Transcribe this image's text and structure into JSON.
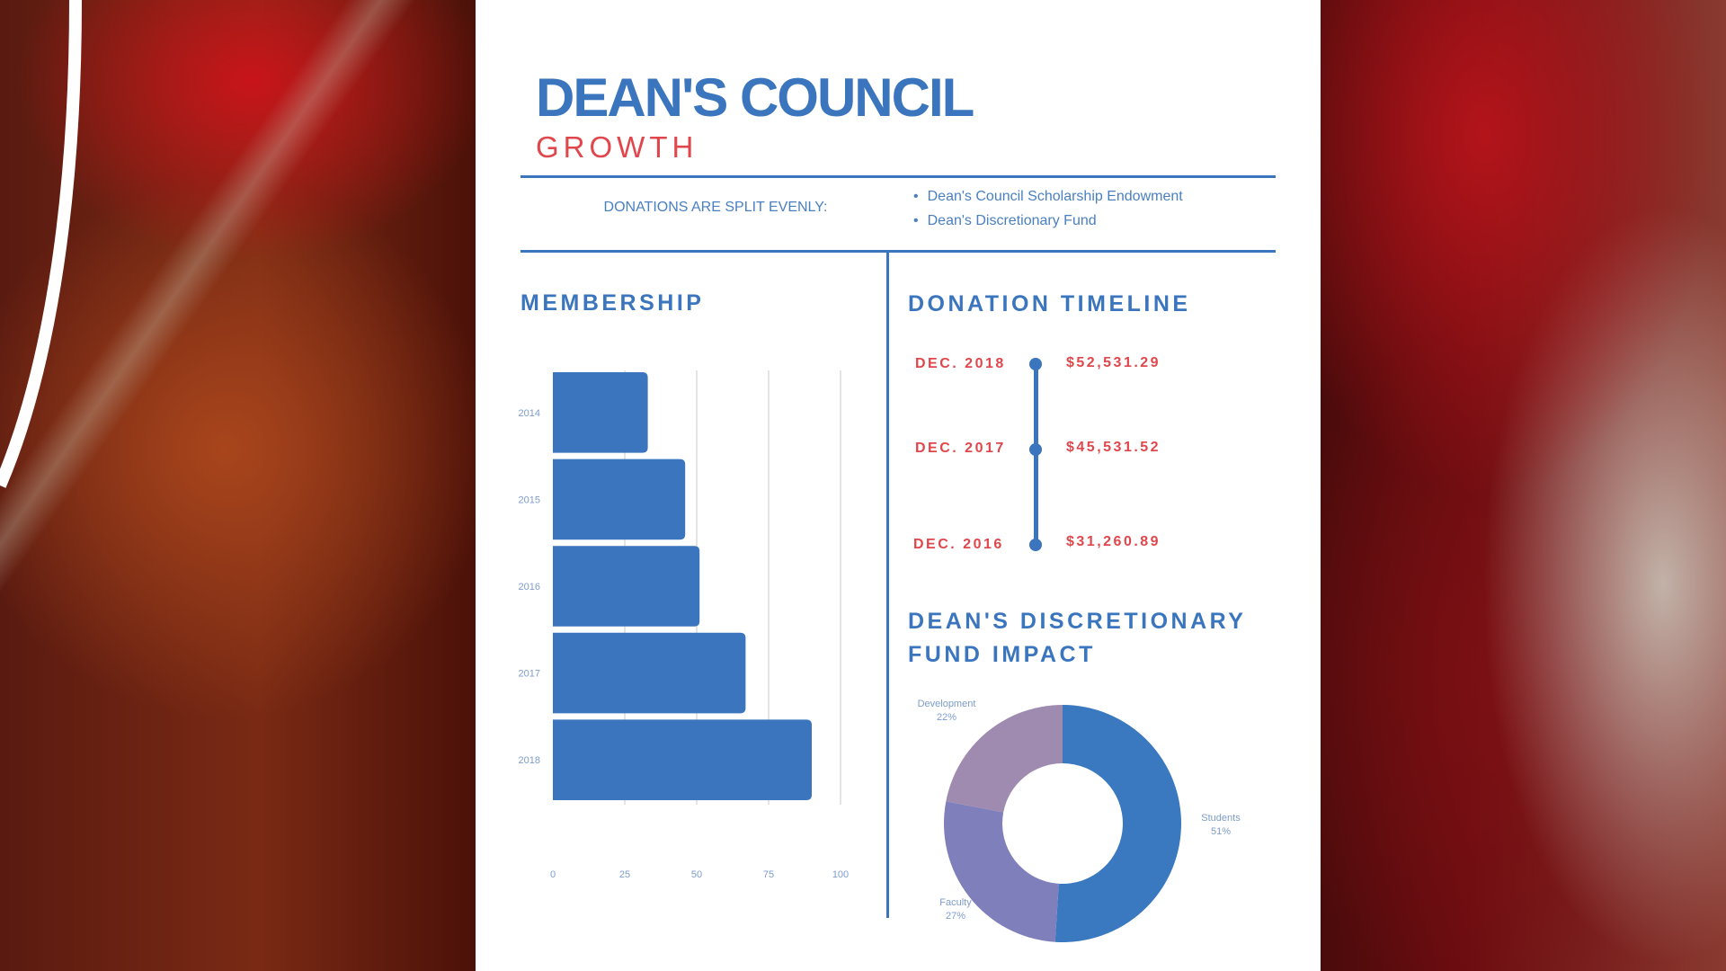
{
  "header": {
    "title": "DEAN'S COUNCIL",
    "subtitle": "GROWTH"
  },
  "split": {
    "label": "DONATIONS ARE SPLIT EVENLY:",
    "items": [
      "Dean's Council Scholarship Endowment",
      "Dean's Discretionary Fund"
    ]
  },
  "membership": {
    "heading": "MEMBERSHIP"
  },
  "timeline": {
    "heading": "DONATION TIMELINE",
    "entries": [
      {
        "date": "DEC. 2018",
        "amount": "$52,531.29"
      },
      {
        "date": "DEC. 2017",
        "amount": "$45,531.52"
      },
      {
        "date": "DEC. 2016",
        "amount": "$31,260.89"
      }
    ]
  },
  "impact": {
    "heading_line1": "DEAN'S DISCRETIONARY",
    "heading_line2": "FUND IMPACT"
  },
  "colors": {
    "accent": "#3a75bd",
    "red": "#e0474c",
    "faculty": "#7f7fbb",
    "development": "#a08bb0"
  },
  "chart_data": [
    {
      "type": "bar",
      "orientation": "horizontal",
      "categories": [
        "2014",
        "2015",
        "2016",
        "2017",
        "2018"
      ],
      "values": [
        33,
        46,
        51,
        67,
        90
      ],
      "xlim": [
        0,
        100
      ],
      "xticks": [
        "0",
        "25",
        "50",
        "75",
        "100"
      ],
      "grid": true,
      "color": "#3a75bd"
    },
    {
      "type": "pie",
      "donut": true,
      "slices": [
        {
          "label": "Students",
          "value": 51,
          "display": "51%",
          "color": "#3a78bf"
        },
        {
          "label": "Faculty",
          "value": 27,
          "display": "27%",
          "color": "#7f7fbb"
        },
        {
          "label": "Development",
          "value": 22,
          "display": "22%",
          "color": "#a08bb0"
        }
      ]
    }
  ]
}
